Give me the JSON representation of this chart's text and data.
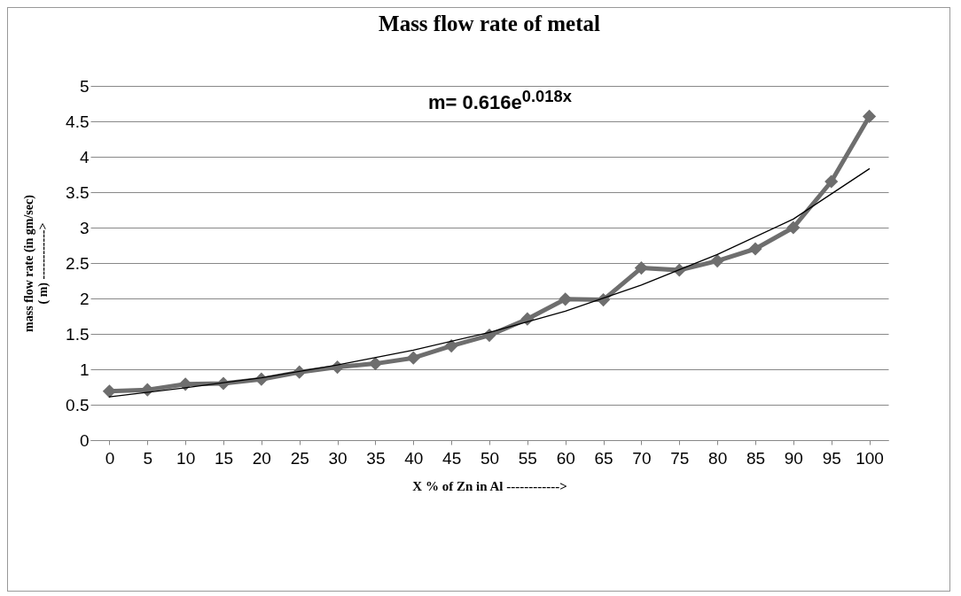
{
  "chart_data": {
    "type": "line",
    "title": "Mass flow rate of metal",
    "xlabel": "X % of Zn in Al  ------------>",
    "ylabel": "mass flow rate   (in gm/sec)\n( m)  ------------>",
    "x": [
      0,
      5,
      10,
      15,
      20,
      25,
      30,
      35,
      40,
      45,
      50,
      55,
      60,
      65,
      70,
      75,
      80,
      85,
      90,
      95,
      100
    ],
    "series": [
      {
        "color": "#6e6e6e",
        "marker": "diamond",
        "values": [
          0.69,
          0.71,
          0.79,
          0.8,
          0.86,
          0.96,
          1.03,
          1.08,
          1.16,
          1.33,
          1.48,
          1.71,
          1.99,
          1.98,
          2.43,
          2.4,
          2.53,
          2.7,
          3.0,
          3.65,
          4.57
        ]
      },
      {
        "type": "line",
        "color": "#000000",
        "marker": "none",
        "x": [
          0,
          10,
          20,
          30,
          40,
          50,
          60,
          70,
          80,
          90,
          100
        ],
        "values": [
          0.61,
          0.74,
          0.88,
          1.06,
          1.27,
          1.52,
          1.82,
          2.19,
          2.62,
          3.12,
          3.83
        ]
      }
    ],
    "xlim": [
      -2.5,
      102.5
    ],
    "xticks": [
      0,
      5,
      10,
      15,
      20,
      25,
      30,
      35,
      40,
      45,
      50,
      55,
      60,
      65,
      70,
      75,
      80,
      85,
      90,
      95,
      100
    ],
    "ylim": [
      0,
      5
    ],
    "yticks": [
      0,
      0.5,
      1,
      1.5,
      2,
      2.5,
      3,
      3.5,
      4,
      4.5,
      5
    ],
    "grid": "y",
    "legend": false,
    "annotations": [
      "m= 0.616e$^{0.018x}$"
    ]
  }
}
